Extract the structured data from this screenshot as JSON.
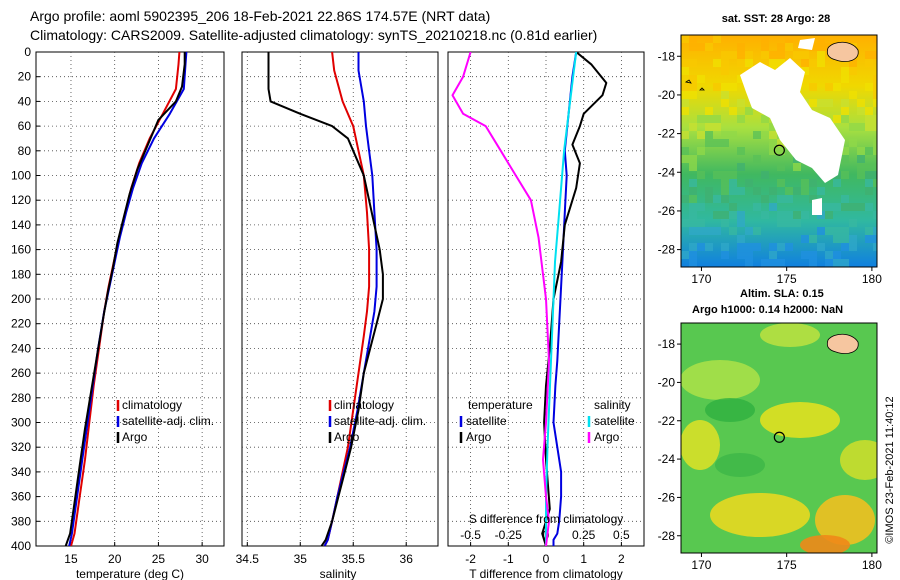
{
  "header": {
    "line1": "Argo profile: aoml 5902395_206 18-Feb-2021 22.86S 174.57E (NRT data)",
    "line2": "Climatology: CARS2009. Satellite-adjusted climatology: synTS_20210218.nc (0.81d earlier)"
  },
  "colors": {
    "clim": "#e00000",
    "sat": "#0000e0",
    "argo": "#000000",
    "sat_s": "#00e0f0",
    "argo_s": "#ff00ff"
  },
  "chart_data": [
    {
      "type": "line",
      "name": "temperature",
      "xlabel": "temperature (deg C)",
      "ylabel": "",
      "xlim": [
        11,
        32.5
      ],
      "ylim": [
        400,
        0
      ],
      "xticks": [
        "15",
        "20",
        "25",
        "30"
      ],
      "xtick_values": [
        15,
        20,
        25,
        30
      ],
      "yticks": [
        "0",
        "20",
        "40",
        "60",
        "80",
        "100",
        "120",
        "140",
        "160",
        "180",
        "200",
        "220",
        "240",
        "260",
        "280",
        "300",
        "320",
        "340",
        "360",
        "380",
        "400"
      ],
      "ytick_values": [
        0,
        20,
        40,
        60,
        80,
        100,
        120,
        140,
        160,
        180,
        200,
        220,
        240,
        260,
        280,
        300,
        320,
        340,
        360,
        380,
        400
      ],
      "legend": [
        "climatology",
        "satellite-adj. clim.",
        "Argo"
      ],
      "series": [
        {
          "name": "climatology",
          "color": "#e00000",
          "x": [
            27.4,
            27.3,
            27.0,
            25.5,
            24.0,
            22.8,
            21.9,
            21.2,
            20.5,
            19.9,
            19.3,
            18.8,
            18.2,
            17.6,
            17.1,
            16.6,
            16.0,
            15.4,
            15.0
          ],
          "y": [
            0,
            10,
            30,
            50,
            70,
            90,
            110,
            130,
            150,
            170,
            190,
            210,
            240,
            270,
            300,
            330,
            360,
            390,
            400
          ]
        },
        {
          "name": "satellite-adj. clim.",
          "color": "#0000e0",
          "x": [
            28.2,
            28.1,
            27.9,
            26.3,
            24.5,
            23.1,
            22.1,
            21.3,
            20.6,
            20.0,
            19.4,
            18.8,
            18.1,
            17.5,
            16.9,
            16.3,
            15.7,
            15.1,
            14.8
          ],
          "y": [
            0,
            10,
            30,
            50,
            70,
            90,
            110,
            130,
            150,
            170,
            190,
            210,
            240,
            270,
            300,
            330,
            360,
            390,
            400
          ]
        },
        {
          "name": "Argo",
          "color": "#000000",
          "x": [
            28.0,
            28.0,
            27.7,
            27.0,
            25.0,
            23.8,
            22.6,
            21.7,
            21.0,
            20.3,
            19.8,
            19.2,
            18.7,
            18.0,
            17.3,
            16.6,
            16.0,
            15.4,
            14.9,
            14.4
          ],
          "y": [
            0,
            10,
            28,
            40,
            55,
            75,
            95,
            115,
            135,
            155,
            175,
            195,
            215,
            245,
            275,
            305,
            335,
            365,
            390,
            400
          ]
        }
      ]
    },
    {
      "type": "line",
      "name": "salinity",
      "xlabel": "salinity",
      "ylabel": "",
      "xlim": [
        34.45,
        36.3
      ],
      "ylim": [
        400,
        0
      ],
      "xticks": [
        "34.5",
        "35",
        "35.5",
        "36"
      ],
      "xtick_values": [
        34.5,
        35,
        35.5,
        36
      ],
      "legend": [
        "climatology",
        "satellite-adj. clim.",
        "Argo"
      ],
      "series": [
        {
          "name": "climatology",
          "color": "#e00000",
          "x": [
            35.3,
            35.32,
            35.4,
            35.5,
            35.55,
            35.6,
            35.63,
            35.65,
            35.65,
            35.63,
            35.6,
            35.55,
            35.5,
            35.45,
            35.4,
            35.35,
            35.3,
            35.26,
            35.23
          ],
          "y": [
            0,
            15,
            40,
            60,
            80,
            100,
            130,
            160,
            190,
            210,
            230,
            260,
            290,
            320,
            340,
            360,
            380,
            395,
            400
          ]
        },
        {
          "name": "satellite-adj. clim.",
          "color": "#0000e0",
          "x": [
            35.55,
            35.55,
            35.6,
            35.62,
            35.65,
            35.68,
            35.7,
            35.72,
            35.72,
            35.7,
            35.66,
            35.6,
            35.54,
            35.47,
            35.41,
            35.35,
            35.3,
            35.26,
            35.23
          ],
          "y": [
            0,
            15,
            40,
            60,
            80,
            100,
            130,
            160,
            190,
            210,
            230,
            260,
            290,
            320,
            340,
            360,
            380,
            395,
            400
          ]
        },
        {
          "name": "Argo",
          "color": "#000000",
          "x": [
            34.7,
            34.7,
            34.72,
            35.0,
            35.3,
            35.45,
            35.5,
            35.6,
            35.65,
            35.7,
            35.75,
            35.78,
            35.78,
            35.72,
            35.66,
            35.6,
            35.55,
            35.48,
            35.42,
            35.36,
            35.3,
            35.24,
            35.2
          ],
          "y": [
            0,
            30,
            40,
            50,
            60,
            70,
            80,
            100,
            120,
            140,
            160,
            180,
            200,
            220,
            240,
            260,
            290,
            320,
            340,
            360,
            380,
            395,
            400
          ]
        }
      ]
    },
    {
      "type": "line",
      "name": "difference from climatology",
      "xlabel": "T difference from climatology",
      "top_axis_label": "S difference from climatology",
      "xlim": [
        -2.6,
        2.6
      ],
      "ylim": [
        400,
        0
      ],
      "xticks": [
        "-2",
        "-1",
        "0",
        "1",
        "2"
      ],
      "xtick_values": [
        -2,
        -1,
        0,
        1,
        2
      ],
      "sticks": [
        "-0.5",
        "-0.25",
        "0",
        "0.25",
        "0.5"
      ],
      "stick_values": [
        -0.5,
        -0.25,
        0,
        0.25,
        0.5
      ],
      "legend_left_title": "temperature",
      "legend_right_title": "salinity",
      "legend_left": [
        "satellite",
        "Argo"
      ],
      "legend_right": [
        "satellite",
        "Argo"
      ],
      "series": [
        {
          "name": "temperature satellite",
          "color": "#0000e0",
          "units": "T",
          "x": [
            0.8,
            0.7,
            0.6,
            0.5,
            0.55,
            0.5,
            0.45,
            0.4,
            0.35,
            0.3,
            0.25,
            0.2,
            0.3,
            0.4,
            0.4,
            0.35,
            0.3,
            0.2,
            0.2
          ],
          "y": [
            0,
            20,
            50,
            80,
            100,
            130,
            160,
            190,
            220,
            250,
            270,
            300,
            320,
            340,
            360,
            380,
            390,
            395,
            400
          ]
        },
        {
          "name": "temperature Argo",
          "color": "#000000",
          "units": "T",
          "x": [
            0.8,
            1.2,
            1.6,
            1.5,
            1.0,
            0.9,
            0.7,
            0.9,
            0.8,
            0.5,
            0.4,
            0.2,
            0.1,
            0.0,
            -0.05,
            0.0,
            0.05,
            0.1,
            -0.1,
            0.0
          ],
          "y": [
            0,
            10,
            25,
            35,
            50,
            60,
            75,
            90,
            110,
            140,
            170,
            200,
            240,
            270,
            300,
            330,
            350,
            370,
            390,
            400
          ]
        },
        {
          "name": "salinity satellite",
          "color": "#00e0f0",
          "units": "S",
          "x": [
            0.2,
            0.18,
            0.15,
            0.12,
            0.1,
            0.08,
            0.06,
            0.05,
            0.04,
            0.03,
            0.02,
            0.01,
            0.0,
            0.0
          ],
          "y": [
            0,
            20,
            50,
            80,
            110,
            140,
            170,
            200,
            230,
            260,
            290,
            320,
            360,
            400
          ]
        },
        {
          "name": "salinity Argo",
          "color": "#ff00ff",
          "units": "S",
          "x": [
            -0.5,
            -0.55,
            -0.62,
            -0.55,
            -0.4,
            -0.3,
            -0.2,
            -0.1,
            -0.05,
            0.0,
            0.02,
            0.0,
            -0.02,
            0.0,
            0.02,
            0.0
          ],
          "y": [
            0,
            20,
            35,
            50,
            60,
            80,
            100,
            120,
            150,
            200,
            250,
            300,
            330,
            360,
            380,
            400
          ]
        }
      ]
    },
    {
      "type": "heatmap",
      "name": "sat map",
      "title": "sat. SST: 28 Argo: 28",
      "xticks": [
        "170",
        "175",
        "180"
      ],
      "xtick_values": [
        170,
        175,
        180
      ],
      "yticks": [
        "-18",
        "-20",
        "-22",
        "-24",
        "-26",
        "-28"
      ],
      "ytick_values": [
        -18,
        -20,
        -22,
        -24,
        -26,
        -28
      ],
      "xlim": [
        168.8,
        180.3
      ],
      "ylim": [
        -28.9,
        -16.9
      ],
      "marker": [
        174.57,
        -22.86
      ]
    },
    {
      "type": "heatmap",
      "name": "altimetry map",
      "title": "Altim. SLA: 0.15",
      "subtitle": "Argo h1000: 0.14 h2000: NaN",
      "xticks": [
        "170",
        "175",
        "180"
      ],
      "xtick_values": [
        170,
        175,
        180
      ],
      "yticks": [
        "-18",
        "-20",
        "-22",
        "-24",
        "-26",
        "-28"
      ],
      "ytick_values": [
        -18,
        -20,
        -22,
        -24,
        -26,
        -28
      ],
      "xlim": [
        168.8,
        180.3
      ],
      "ylim": [
        -28.9,
        -16.9
      ],
      "marker": [
        174.57,
        -22.86
      ]
    }
  ],
  "credit": "©IMOS 23-Feb-2021 11:40:12"
}
